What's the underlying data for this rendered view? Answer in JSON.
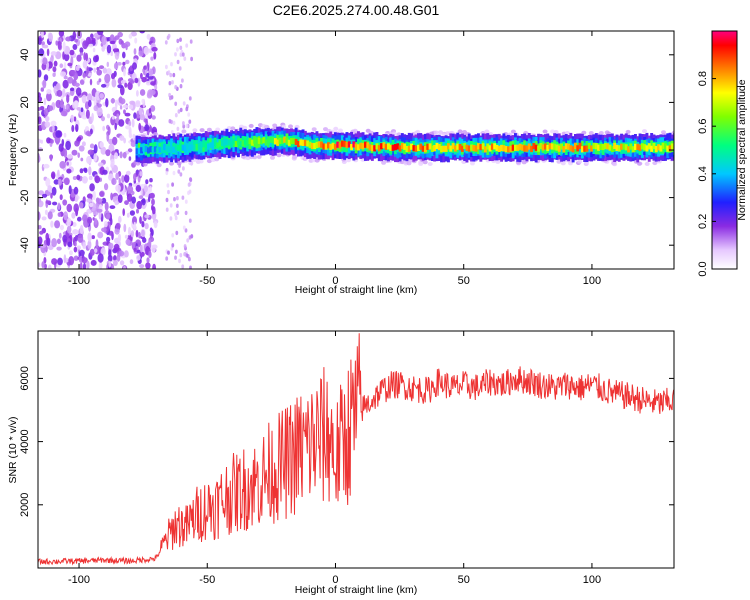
{
  "figure_title": "C2E6.2025.274.00.48.G01",
  "chart_data": [
    {
      "type": "heatmap",
      "title": "C2E6.2025.274.00.48.G01",
      "xlabel": "Height of straight line (km)",
      "ylabel": "Frequency (Hz)",
      "xlim": [
        -116,
        132
      ],
      "ylim": [
        -50,
        50
      ],
      "x_ticks": [
        -100,
        -50,
        0,
        50,
        100
      ],
      "y_ticks": [
        -40,
        -20,
        0,
        20,
        40
      ],
      "colorbar": {
        "label": "Normalized spectral amplitude",
        "range": [
          0.0,
          1.0
        ],
        "ticks": [
          "0.0",
          "0.2",
          "0.4",
          "0.6",
          "0.8"
        ]
      },
      "signal_band": {
        "description_points": [
          {
            "x": -78,
            "freq": 0,
            "amplitude": 0.4
          },
          {
            "x": -60,
            "freq": 1,
            "amplitude": 0.5
          },
          {
            "x": -40,
            "freq": 3,
            "amplitude": 0.6
          },
          {
            "x": -20,
            "freq": 4,
            "amplitude": 0.8
          },
          {
            "x": -10,
            "freq": 2,
            "amplitude": 0.9
          },
          {
            "x": 0,
            "freq": 2,
            "amplitude": 0.95
          },
          {
            "x": 25,
            "freq": 1,
            "amplitude": 0.9
          },
          {
            "x": 50,
            "freq": 1,
            "amplitude": 0.85
          },
          {
            "x": 75,
            "freq": 1,
            "amplitude": 0.9
          },
          {
            "x": 100,
            "freq": 1,
            "amplitude": 0.85
          },
          {
            "x": 132,
            "freq": 1,
            "amplitude": 0.8
          }
        ],
        "noise_region_x": [
          -116,
          -70
        ]
      }
    },
    {
      "type": "line",
      "xlabel": "Height of straight line (km)",
      "ylabel": "SNR (10 * v/v)",
      "xlim": [
        -116,
        132
      ],
      "ylim": [
        0,
        7500
      ],
      "x_ticks": [
        -100,
        -50,
        0,
        50,
        100
      ],
      "y_ticks": [
        2000,
        4000,
        6000
      ],
      "color": "#ee3333",
      "series": [
        {
          "x": [
            -116,
            -100,
            -90,
            -80,
            -70,
            -66,
            -62,
            -58,
            -54,
            -50,
            -46,
            -42,
            -38,
            -34,
            -30,
            -26,
            -22,
            -18,
            -14,
            -10,
            -6,
            -2,
            0,
            2,
            6,
            10,
            14,
            18,
            22,
            26,
            30,
            36,
            40,
            46,
            50,
            56,
            60,
            66,
            70,
            76,
            80,
            86,
            90,
            96,
            100,
            106,
            110,
            116,
            120,
            126,
            132
          ],
          "values": [
            200,
            220,
            250,
            220,
            300,
            900,
            1400,
            1300,
            1700,
            1900,
            2000,
            2300,
            2400,
            2600,
            2700,
            3000,
            3200,
            3400,
            3700,
            3900,
            4100,
            4200,
            3400,
            3800,
            4500,
            5000,
            5300,
            5600,
            5800,
            5800,
            5700,
            5600,
            5900,
            5700,
            5800,
            5700,
            5900,
            5800,
            6000,
            5900,
            5800,
            5700,
            5800,
            5700,
            5800,
            5600,
            5500,
            5400,
            5300,
            5200,
            5300
          ]
        }
      ]
    }
  ]
}
